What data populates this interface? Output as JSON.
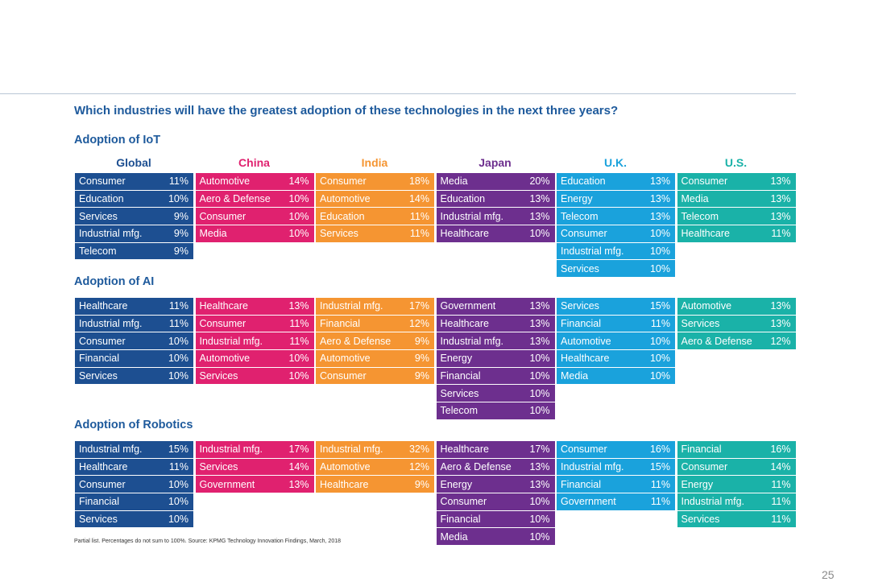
{
  "question": "Which industries will have the greatest adoption of these technologies in the next three years?",
  "countries": [
    {
      "name": "Global",
      "color": "#1d4f91"
    },
    {
      "name": "China",
      "color": "#e0216f"
    },
    {
      "name": "India",
      "color": "#f59532"
    },
    {
      "name": "Japan",
      "color": "#6d2f8e"
    },
    {
      "name": "U.K.",
      "color": "#1aa2dc"
    },
    {
      "name": "U.S.",
      "color": "#1ab2a8"
    }
  ],
  "sections": [
    {
      "title": "Adoption of IoT",
      "columns": [
        [
          [
            "Consumer",
            "11%"
          ],
          [
            "Education",
            "10%"
          ],
          [
            "Services",
            "9%"
          ],
          [
            "Industrial mfg.",
            "9%"
          ],
          [
            "Telecom",
            "9%"
          ]
        ],
        [
          [
            "Automotive",
            "14%"
          ],
          [
            "Aero & Defense",
            "10%"
          ],
          [
            "Consumer",
            "10%"
          ],
          [
            "Media",
            "10%"
          ]
        ],
        [
          [
            "Consumer",
            "18%"
          ],
          [
            "Automotive",
            "14%"
          ],
          [
            "Education",
            "11%"
          ],
          [
            "Services",
            "11%"
          ]
        ],
        [
          [
            "Media",
            "20%"
          ],
          [
            "Education",
            "13%"
          ],
          [
            "Industrial mfg.",
            "13%"
          ],
          [
            "Healthcare",
            "10%"
          ]
        ],
        [
          [
            "Education",
            "13%"
          ],
          [
            "Energy",
            "13%"
          ],
          [
            "Telecom",
            "13%"
          ],
          [
            "Consumer",
            "10%"
          ],
          [
            "Industrial mfg.",
            "10%"
          ],
          [
            "Services",
            "10%"
          ]
        ],
        [
          [
            "Consumer",
            "13%"
          ],
          [
            "Media",
            "13%"
          ],
          [
            "Telecom",
            "13%"
          ],
          [
            "Healthcare",
            "11%"
          ]
        ]
      ]
    },
    {
      "title": "Adoption of AI",
      "columns": [
        [
          [
            "Healthcare",
            "11%"
          ],
          [
            "Industrial mfg.",
            "11%"
          ],
          [
            "Consumer",
            "10%"
          ],
          [
            "Financial",
            "10%"
          ],
          [
            "Services",
            "10%"
          ]
        ],
        [
          [
            "Healthcare",
            "13%"
          ],
          [
            "Consumer",
            "11%"
          ],
          [
            "Industrial mfg.",
            "11%"
          ],
          [
            "Automotive",
            "10%"
          ],
          [
            "Services",
            "10%"
          ]
        ],
        [
          [
            "Industrial mfg.",
            "17%"
          ],
          [
            "Financial",
            "12%"
          ],
          [
            "Aero & Defense",
            "9%"
          ],
          [
            "Automotive",
            "9%"
          ],
          [
            "Consumer",
            "9%"
          ]
        ],
        [
          [
            "Government",
            "13%"
          ],
          [
            "Healthcare",
            "13%"
          ],
          [
            "Industrial mfg.",
            "13%"
          ],
          [
            "Energy",
            "10%"
          ],
          [
            "Financial",
            "10%"
          ],
          [
            "Services",
            "10%"
          ],
          [
            "Telecom",
            "10%"
          ]
        ],
        [
          [
            "Services",
            "15%"
          ],
          [
            "Financial",
            "11%"
          ],
          [
            "Automotive",
            "10%"
          ],
          [
            "Healthcare",
            "10%"
          ],
          [
            "Media",
            "10%"
          ]
        ],
        [
          [
            "Automotive",
            "13%"
          ],
          [
            "Services",
            "13%"
          ],
          [
            "Aero & Defense",
            "12%"
          ]
        ]
      ]
    },
    {
      "title": "Adoption of Robotics",
      "columns": [
        [
          [
            "Industrial mfg.",
            "15%"
          ],
          [
            "Healthcare",
            "11%"
          ],
          [
            "Consumer",
            "10%"
          ],
          [
            "Financial",
            "10%"
          ],
          [
            "Services",
            "10%"
          ]
        ],
        [
          [
            "Industrial mfg.",
            "17%"
          ],
          [
            "Services",
            "14%"
          ],
          [
            "Government",
            "13%"
          ]
        ],
        [
          [
            "Industrial mfg.",
            "32%"
          ],
          [
            "Automotive",
            "12%"
          ],
          [
            "Healthcare",
            "9%"
          ]
        ],
        [
          [
            "Healthcare",
            "17%"
          ],
          [
            "Aero & Defense",
            "13%"
          ],
          [
            "Energy",
            "13%"
          ],
          [
            "Consumer",
            "10%"
          ],
          [
            "Financial",
            "10%"
          ],
          [
            "Media",
            "10%"
          ]
        ],
        [
          [
            "Consumer",
            "16%"
          ],
          [
            "Industrial mfg.",
            "15%"
          ],
          [
            "Financial",
            "11%"
          ],
          [
            "Government",
            "11%"
          ]
        ],
        [
          [
            "Financial",
            "16%"
          ],
          [
            "Consumer",
            "14%"
          ],
          [
            "Energy",
            "11%"
          ],
          [
            "Industrial mfg.",
            "11%"
          ],
          [
            "Services",
            "11%"
          ]
        ]
      ]
    }
  ],
  "footnote": "Partial list. Percentages do not sum to 100%. Source: KPMG Technology Innovation Findings, March, 2018",
  "page_number": "25"
}
